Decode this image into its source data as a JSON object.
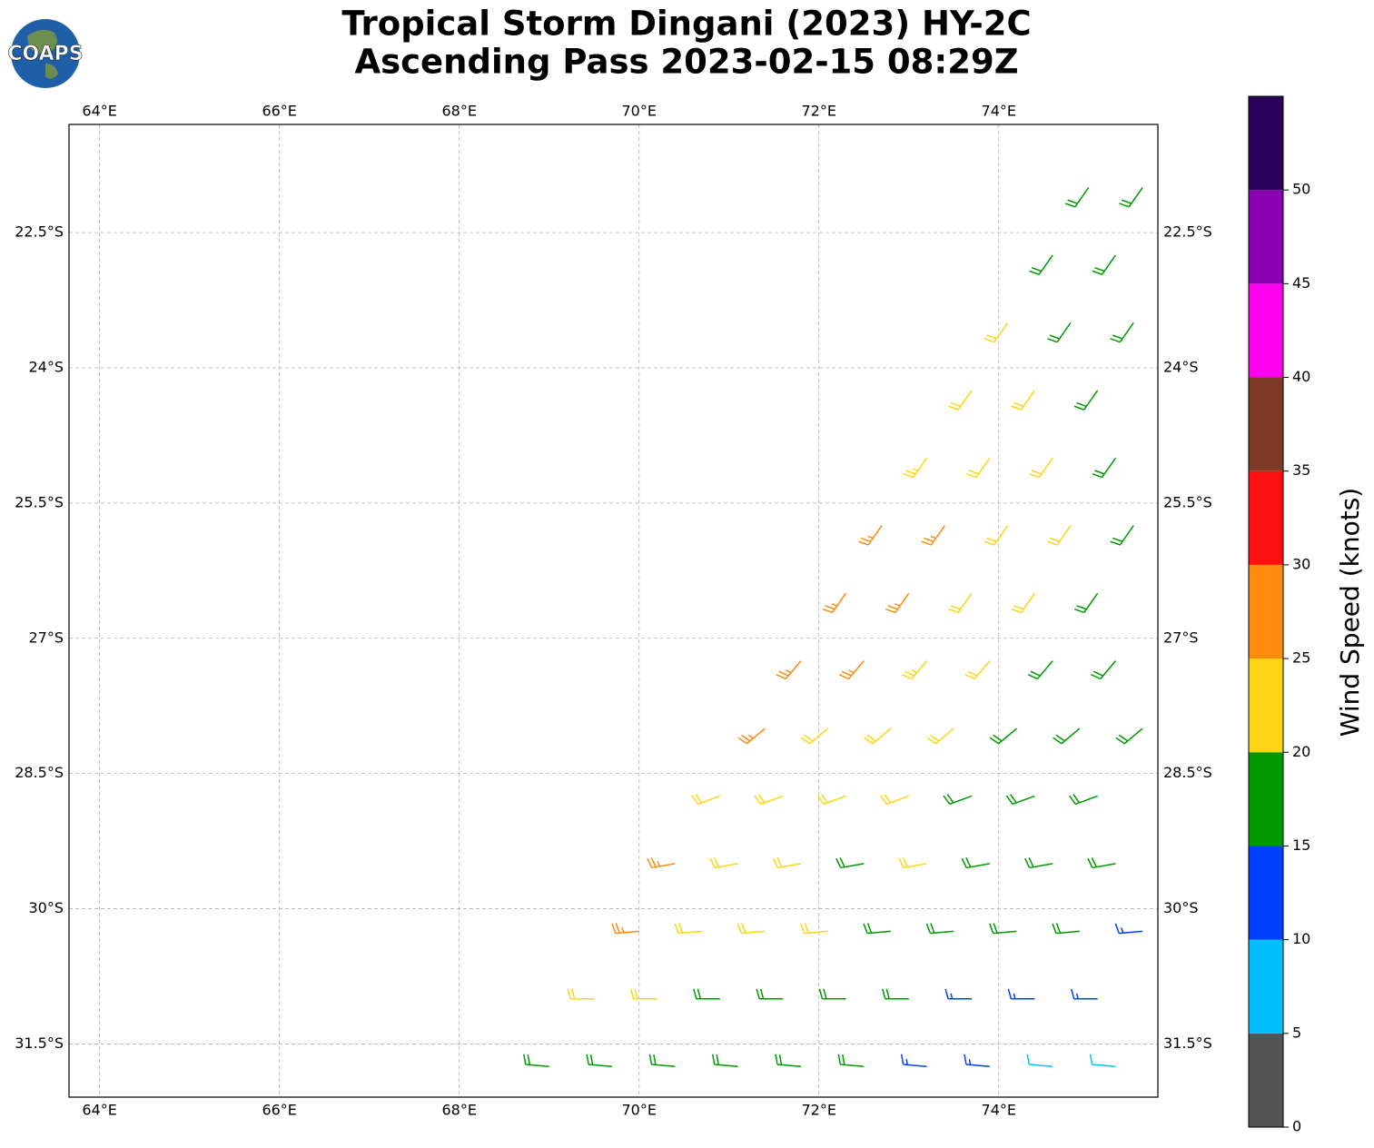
{
  "logo": "COAPS",
  "chart_data": {
    "type": "barb_map",
    "title": "Tropical Storm Dingani (2023) HY-2C",
    "subtitle": "Ascending Pass 2023-02-15 08:29Z",
    "xlim": [
      63.66,
      75.77
    ],
    "ylim": [
      -32.09,
      -21.3
    ],
    "xticks": [
      {
        "value": 64,
        "label": "64°E"
      },
      {
        "value": 66,
        "label": "66°E"
      },
      {
        "value": 68,
        "label": "68°E"
      },
      {
        "value": 70,
        "label": "70°E"
      },
      {
        "value": 72,
        "label": "72°E"
      },
      {
        "value": 74,
        "label": "74°E"
      }
    ],
    "yticks": [
      {
        "value": -22.5,
        "label": "22.5°S"
      },
      {
        "value": -24,
        "label": "24°S"
      },
      {
        "value": -25.5,
        "label": "25.5°S"
      },
      {
        "value": -27,
        "label": "27°S"
      },
      {
        "value": -28.5,
        "label": "28.5°S"
      },
      {
        "value": -30,
        "label": "30°S"
      },
      {
        "value": -31.5,
        "label": "31.5°S"
      }
    ],
    "grid": true,
    "colorbar": {
      "label": "Wind Speed (knots)",
      "lim": [
        0,
        55
      ],
      "ticks": [
        0,
        5,
        10,
        15,
        20,
        25,
        30,
        35,
        40,
        45,
        50
      ],
      "colors": [
        "#555555",
        "#00bfff",
        "#0040ff",
        "#009900",
        "#fcd612",
        "#ff8c0f",
        "#ff0f0f",
        "#7f3b28",
        "#ff00f0",
        "#8800b0",
        "#2b0058"
      ]
    },
    "barbs": [
      {
        "lon": 75.0,
        "lat": -22.0,
        "speed": 18,
        "direction": 215
      },
      {
        "lon": 75.6,
        "lat": -22.0,
        "speed": 18,
        "direction": 215
      },
      {
        "lon": 74.6,
        "lat": -22.75,
        "speed": 18,
        "direction": 215
      },
      {
        "lon": 75.3,
        "lat": -22.75,
        "speed": 18,
        "direction": 215
      },
      {
        "lon": 74.1,
        "lat": -23.5,
        "speed": 22,
        "direction": 215
      },
      {
        "lon": 74.8,
        "lat": -23.5,
        "speed": 18,
        "direction": 215
      },
      {
        "lon": 75.5,
        "lat": -23.5,
        "speed": 18,
        "direction": 215
      },
      {
        "lon": 73.7,
        "lat": -24.25,
        "speed": 22,
        "direction": 215
      },
      {
        "lon": 74.4,
        "lat": -24.25,
        "speed": 22,
        "direction": 215
      },
      {
        "lon": 75.1,
        "lat": -24.25,
        "speed": 18,
        "direction": 215
      },
      {
        "lon": 73.2,
        "lat": -25.0,
        "speed": 23,
        "direction": 215
      },
      {
        "lon": 73.9,
        "lat": -25.0,
        "speed": 22,
        "direction": 215
      },
      {
        "lon": 74.6,
        "lat": -25.0,
        "speed": 22,
        "direction": 215
      },
      {
        "lon": 75.3,
        "lat": -25.0,
        "speed": 18,
        "direction": 215
      },
      {
        "lon": 72.7,
        "lat": -25.75,
        "speed": 27,
        "direction": 215
      },
      {
        "lon": 73.4,
        "lat": -25.75,
        "speed": 26,
        "direction": 215
      },
      {
        "lon": 74.1,
        "lat": -25.75,
        "speed": 22,
        "direction": 215
      },
      {
        "lon": 74.8,
        "lat": -25.75,
        "speed": 22,
        "direction": 215
      },
      {
        "lon": 75.5,
        "lat": -25.75,
        "speed": 18,
        "direction": 215
      },
      {
        "lon": 72.3,
        "lat": -26.5,
        "speed": 27,
        "direction": 215
      },
      {
        "lon": 73.0,
        "lat": -26.5,
        "speed": 27,
        "direction": 215
      },
      {
        "lon": 73.7,
        "lat": -26.5,
        "speed": 22,
        "direction": 215
      },
      {
        "lon": 74.4,
        "lat": -26.5,
        "speed": 22,
        "direction": 215
      },
      {
        "lon": 75.1,
        "lat": -26.5,
        "speed": 18,
        "direction": 215
      },
      {
        "lon": 71.8,
        "lat": -27.25,
        "speed": 27,
        "direction": 220
      },
      {
        "lon": 72.5,
        "lat": -27.25,
        "speed": 27,
        "direction": 220
      },
      {
        "lon": 73.2,
        "lat": -27.25,
        "speed": 23,
        "direction": 220
      },
      {
        "lon": 73.9,
        "lat": -27.25,
        "speed": 22,
        "direction": 220
      },
      {
        "lon": 74.6,
        "lat": -27.25,
        "speed": 18,
        "direction": 220
      },
      {
        "lon": 75.3,
        "lat": -27.25,
        "speed": 18,
        "direction": 220
      },
      {
        "lon": 71.4,
        "lat": -28.0,
        "speed": 26,
        "direction": 230
      },
      {
        "lon": 72.1,
        "lat": -28.0,
        "speed": 22,
        "direction": 230
      },
      {
        "lon": 72.8,
        "lat": -28.0,
        "speed": 22,
        "direction": 230
      },
      {
        "lon": 73.5,
        "lat": -28.0,
        "speed": 22,
        "direction": 230
      },
      {
        "lon": 74.2,
        "lat": -28.0,
        "speed": 18,
        "direction": 230
      },
      {
        "lon": 74.9,
        "lat": -28.0,
        "speed": 18,
        "direction": 230
      },
      {
        "lon": 75.6,
        "lat": -28.0,
        "speed": 18,
        "direction": 230
      },
      {
        "lon": 70.9,
        "lat": -28.75,
        "speed": 22,
        "direction": 250
      },
      {
        "lon": 71.6,
        "lat": -28.75,
        "speed": 22,
        "direction": 250
      },
      {
        "lon": 72.3,
        "lat": -28.75,
        "speed": 22,
        "direction": 250
      },
      {
        "lon": 73.0,
        "lat": -28.75,
        "speed": 22,
        "direction": 250
      },
      {
        "lon": 73.7,
        "lat": -28.75,
        "speed": 18,
        "direction": 250
      },
      {
        "lon": 74.4,
        "lat": -28.75,
        "speed": 18,
        "direction": 250
      },
      {
        "lon": 75.1,
        "lat": -28.75,
        "speed": 18,
        "direction": 250
      },
      {
        "lon": 70.4,
        "lat": -29.5,
        "speed": 26,
        "direction": 260
      },
      {
        "lon": 71.1,
        "lat": -29.5,
        "speed": 22,
        "direction": 260
      },
      {
        "lon": 71.8,
        "lat": -29.5,
        "speed": 22,
        "direction": 260
      },
      {
        "lon": 72.5,
        "lat": -29.5,
        "speed": 18,
        "direction": 260
      },
      {
        "lon": 73.2,
        "lat": -29.5,
        "speed": 22,
        "direction": 260
      },
      {
        "lon": 73.9,
        "lat": -29.5,
        "speed": 18,
        "direction": 260
      },
      {
        "lon": 74.6,
        "lat": -29.5,
        "speed": 18,
        "direction": 260
      },
      {
        "lon": 75.3,
        "lat": -29.5,
        "speed": 18,
        "direction": 260
      },
      {
        "lon": 70.0,
        "lat": -30.25,
        "speed": 26,
        "direction": 265
      },
      {
        "lon": 70.7,
        "lat": -30.25,
        "speed": 22,
        "direction": 265
      },
      {
        "lon": 71.4,
        "lat": -30.25,
        "speed": 22,
        "direction": 265
      },
      {
        "lon": 72.1,
        "lat": -30.25,
        "speed": 22,
        "direction": 265
      },
      {
        "lon": 72.8,
        "lat": -30.25,
        "speed": 18,
        "direction": 265
      },
      {
        "lon": 73.5,
        "lat": -30.25,
        "speed": 18,
        "direction": 265
      },
      {
        "lon": 74.2,
        "lat": -30.25,
        "speed": 18,
        "direction": 265
      },
      {
        "lon": 74.9,
        "lat": -30.25,
        "speed": 18,
        "direction": 265
      },
      {
        "lon": 75.6,
        "lat": -30.25,
        "speed": 13,
        "direction": 265
      },
      {
        "lon": 69.5,
        "lat": -31.0,
        "speed": 22,
        "direction": 270
      },
      {
        "lon": 70.2,
        "lat": -31.0,
        "speed": 22,
        "direction": 270
      },
      {
        "lon": 70.9,
        "lat": -31.0,
        "speed": 18,
        "direction": 270
      },
      {
        "lon": 71.6,
        "lat": -31.0,
        "speed": 18,
        "direction": 270
      },
      {
        "lon": 72.3,
        "lat": -31.0,
        "speed": 18,
        "direction": 270
      },
      {
        "lon": 73.0,
        "lat": -31.0,
        "speed": 18,
        "direction": 270
      },
      {
        "lon": 73.7,
        "lat": -31.0,
        "speed": 13,
        "direction": 270
      },
      {
        "lon": 74.4,
        "lat": -31.0,
        "speed": 13,
        "direction": 270
      },
      {
        "lon": 75.1,
        "lat": -31.0,
        "speed": 13,
        "direction": 270
      },
      {
        "lon": 69.0,
        "lat": -31.75,
        "speed": 18,
        "direction": 275
      },
      {
        "lon": 69.7,
        "lat": -31.75,
        "speed": 18,
        "direction": 275
      },
      {
        "lon": 70.4,
        "lat": -31.75,
        "speed": 18,
        "direction": 275
      },
      {
        "lon": 71.1,
        "lat": -31.75,
        "speed": 18,
        "direction": 275
      },
      {
        "lon": 71.8,
        "lat": -31.75,
        "speed": 18,
        "direction": 275
      },
      {
        "lon": 72.5,
        "lat": -31.75,
        "speed": 18,
        "direction": 275
      },
      {
        "lon": 73.2,
        "lat": -31.75,
        "speed": 13,
        "direction": 275
      },
      {
        "lon": 73.9,
        "lat": -31.75,
        "speed": 13,
        "direction": 275
      },
      {
        "lon": 74.6,
        "lat": -31.75,
        "speed": 8,
        "direction": 275
      },
      {
        "lon": 75.3,
        "lat": -31.75,
        "speed": 8,
        "direction": 275
      }
    ]
  }
}
